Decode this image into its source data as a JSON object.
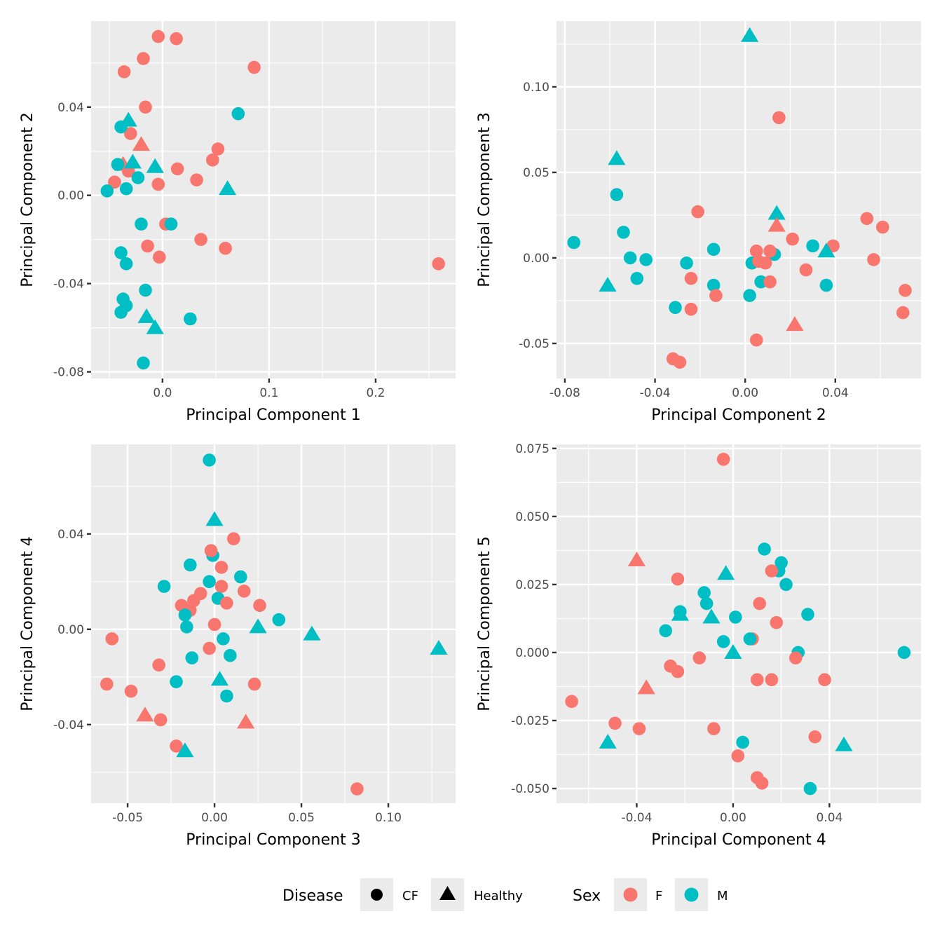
{
  "colors": {
    "panel_background": "#EBEBEB",
    "grid_major": "#FFFFFF",
    "grid_minor": "#F5F5F5",
    "tick": "#333333",
    "F": "#F8766D",
    "M": "#00BFC4"
  },
  "legend": {
    "disease": {
      "title": "Disease",
      "items": [
        {
          "key": "CF",
          "label": "CF",
          "shape": "circle"
        },
        {
          "key": "Healthy",
          "label": "Healthy",
          "shape": "triangle"
        }
      ]
    },
    "sex": {
      "title": "Sex",
      "items": [
        {
          "key": "F",
          "label": "F",
          "color": "#F8766D"
        },
        {
          "key": "M",
          "label": "M",
          "color": "#00BFC4"
        }
      ]
    },
    "placement": "bottom"
  },
  "chart_data": [
    {
      "type": "scatter",
      "title": "",
      "xlabel": "Principal Component 1",
      "ylabel": "Principal Component 2",
      "xlim": [
        -0.067,
        0.275
      ],
      "ylim": [
        -0.083,
        0.079
      ],
      "grid": true,
      "xticks": [
        {
          "v": 0.0,
          "label": "0.0"
        },
        {
          "v": 0.1,
          "label": "0.1"
        },
        {
          "v": 0.2,
          "label": "0.2"
        }
      ],
      "yticks": [
        {
          "v": 0.04,
          "label": "0.04"
        },
        {
          "v": 0.0,
          "label": "0.00"
        },
        {
          "v": -0.04,
          "label": "-0.04"
        },
        {
          "v": -0.08,
          "label": "-0.08"
        }
      ],
      "points": [
        [
          -0.004,
          0.072,
          "F",
          "CF"
        ],
        [
          0.013,
          0.071,
          "F",
          "CF"
        ],
        [
          -0.018,
          0.062,
          "F",
          "CF"
        ],
        [
          -0.036,
          0.056,
          "F",
          "CF"
        ],
        [
          0.086,
          0.058,
          "F",
          "CF"
        ],
        [
          -0.016,
          0.04,
          "F",
          "CF"
        ],
        [
          -0.03,
          0.028,
          "F",
          "CF"
        ],
        [
          0.052,
          0.021,
          "F",
          "CF"
        ],
        [
          0.047,
          0.016,
          "F",
          "CF"
        ],
        [
          0.014,
          0.012,
          "F",
          "CF"
        ],
        [
          0.032,
          0.007,
          "F",
          "CF"
        ],
        [
          -0.004,
          0.005,
          "F",
          "CF"
        ],
        [
          -0.045,
          0.006,
          "F",
          "CF"
        ],
        [
          -0.032,
          0.011,
          "F",
          "CF"
        ],
        [
          0.003,
          -0.013,
          "F",
          "CF"
        ],
        [
          0.036,
          -0.02,
          "F",
          "CF"
        ],
        [
          -0.014,
          -0.023,
          "F",
          "CF"
        ],
        [
          0.059,
          -0.024,
          "F",
          "CF"
        ],
        [
          -0.003,
          -0.028,
          "F",
          "CF"
        ],
        [
          0.259,
          -0.031,
          "F",
          "CF"
        ],
        [
          -0.02,
          0.023,
          "F",
          "Healthy"
        ],
        [
          -0.037,
          0.014,
          "F",
          "Healthy"
        ],
        [
          -0.039,
          0.031,
          "M",
          "CF"
        ],
        [
          0.071,
          0.037,
          "M",
          "CF"
        ],
        [
          -0.042,
          0.014,
          "M",
          "CF"
        ],
        [
          -0.023,
          0.008,
          "M",
          "CF"
        ],
        [
          -0.034,
          0.003,
          "M",
          "CF"
        ],
        [
          -0.052,
          0.002,
          "M",
          "CF"
        ],
        [
          -0.02,
          -0.013,
          "M",
          "CF"
        ],
        [
          0.008,
          -0.013,
          "M",
          "CF"
        ],
        [
          -0.039,
          -0.026,
          "M",
          "CF"
        ],
        [
          -0.034,
          -0.031,
          "M",
          "CF"
        ],
        [
          -0.016,
          -0.043,
          "M",
          "CF"
        ],
        [
          -0.037,
          -0.047,
          "M",
          "CF"
        ],
        [
          -0.034,
          -0.05,
          "M",
          "CF"
        ],
        [
          -0.039,
          -0.053,
          "M",
          "CF"
        ],
        [
          0.026,
          -0.056,
          "M",
          "CF"
        ],
        [
          -0.018,
          -0.076,
          "M",
          "CF"
        ],
        [
          -0.032,
          0.034,
          "M",
          "Healthy"
        ],
        [
          -0.028,
          0.015,
          "M",
          "Healthy"
        ],
        [
          -0.007,
          0.013,
          "M",
          "Healthy"
        ],
        [
          0.061,
          0.003,
          "M",
          "Healthy"
        ],
        [
          -0.015,
          -0.055,
          "M",
          "Healthy"
        ],
        [
          -0.007,
          -0.06,
          "M",
          "Healthy"
        ]
      ]
    },
    {
      "type": "scatter",
      "title": "",
      "xlabel": "Principal Component 2",
      "ylabel": "Principal Component 3",
      "xlim": [
        -0.0837,
        0.078
      ],
      "ylim": [
        -0.0705,
        0.1385
      ],
      "grid": true,
      "xticks": [
        {
          "v": -0.08,
          "label": "-0.08"
        },
        {
          "v": -0.04,
          "label": "-0.04"
        },
        {
          "v": 0.0,
          "label": "0.00"
        },
        {
          "v": 0.04,
          "label": "0.04"
        }
      ],
      "yticks": [
        {
          "v": 0.1,
          "label": "0.10"
        },
        {
          "v": 0.05,
          "label": "0.05"
        },
        {
          "v": 0.0,
          "label": "0.00"
        },
        {
          "v": -0.05,
          "label": "-0.05"
        }
      ],
      "points": [
        [
          0.002,
          0.13,
          "M",
          "Healthy"
        ],
        [
          0.015,
          0.082,
          "F",
          "CF"
        ],
        [
          -0.057,
          0.058,
          "M",
          "Healthy"
        ],
        [
          -0.057,
          0.037,
          "M",
          "CF"
        ],
        [
          -0.021,
          0.027,
          "F",
          "CF"
        ],
        [
          0.014,
          0.026,
          "M",
          "Healthy"
        ],
        [
          0.014,
          0.019,
          "F",
          "Healthy"
        ],
        [
          -0.054,
          0.015,
          "M",
          "CF"
        ],
        [
          0.054,
          0.023,
          "F",
          "CF"
        ],
        [
          0.061,
          0.018,
          "F",
          "CF"
        ],
        [
          0.021,
          0.011,
          "F",
          "CF"
        ],
        [
          -0.076,
          0.009,
          "M",
          "CF"
        ],
        [
          -0.014,
          0.005,
          "M",
          "CF"
        ],
        [
          0.03,
          0.007,
          "M",
          "CF"
        ],
        [
          0.039,
          0.007,
          "F",
          "CF"
        ],
        [
          0.013,
          0.002,
          "M",
          "CF"
        ],
        [
          0.005,
          0.004,
          "F",
          "CF"
        ],
        [
          0.011,
          0.004,
          "F",
          "CF"
        ],
        [
          0.036,
          0.004,
          "M",
          "Healthy"
        ],
        [
          -0.051,
          0.0,
          "M",
          "CF"
        ],
        [
          -0.044,
          -0.001,
          "M",
          "CF"
        ],
        [
          0.057,
          -0.001,
          "F",
          "CF"
        ],
        [
          0.003,
          -0.003,
          "M",
          "CF"
        ],
        [
          0.006,
          -0.002,
          "F",
          "CF"
        ],
        [
          0.009,
          -0.003,
          "F",
          "CF"
        ],
        [
          -0.026,
          -0.003,
          "M",
          "CF"
        ],
        [
          0.027,
          -0.007,
          "F",
          "CF"
        ],
        [
          -0.048,
          -0.012,
          "M",
          "CF"
        ],
        [
          -0.024,
          -0.012,
          "F",
          "CF"
        ],
        [
          0.007,
          -0.014,
          "M",
          "CF"
        ],
        [
          0.011,
          -0.014,
          "F",
          "CF"
        ],
        [
          -0.014,
          -0.016,
          "M",
          "CF"
        ],
        [
          0.036,
          -0.016,
          "M",
          "CF"
        ],
        [
          0.071,
          -0.019,
          "F",
          "CF"
        ],
        [
          -0.061,
          -0.016,
          "M",
          "Healthy"
        ],
        [
          -0.013,
          -0.022,
          "F",
          "CF"
        ],
        [
          0.002,
          -0.022,
          "M",
          "CF"
        ],
        [
          -0.031,
          -0.029,
          "M",
          "CF"
        ],
        [
          -0.024,
          -0.03,
          "F",
          "CF"
        ],
        [
          0.07,
          -0.032,
          "F",
          "CF"
        ],
        [
          0.022,
          -0.039,
          "F",
          "Healthy"
        ],
        [
          0.005,
          -0.048,
          "F",
          "CF"
        ],
        [
          -0.032,
          -0.059,
          "F",
          "CF"
        ],
        [
          -0.029,
          -0.061,
          "F",
          "CF"
        ]
      ]
    },
    {
      "type": "scatter",
      "title": "",
      "xlabel": "Principal Component 3",
      "ylabel": "Principal Component 4",
      "xlim": [
        -0.071,
        0.1387
      ],
      "ylim": [
        -0.073,
        0.0776
      ],
      "grid": true,
      "xticks": [
        {
          "v": -0.05,
          "label": "-0.05"
        },
        {
          "v": 0.0,
          "label": "0.00"
        },
        {
          "v": 0.05,
          "label": "0.05"
        },
        {
          "v": 0.1,
          "label": "0.10"
        }
      ],
      "yticks": [
        {
          "v": 0.04,
          "label": "0.04"
        },
        {
          "v": 0.0,
          "label": "0.00"
        },
        {
          "v": -0.04,
          "label": "-0.04"
        }
      ],
      "points": [
        [
          -0.003,
          0.071,
          "M",
          "CF"
        ],
        [
          0.0,
          0.046,
          "M",
          "Healthy"
        ],
        [
          0.011,
          0.038,
          "F",
          "CF"
        ],
        [
          -0.001,
          0.031,
          "M",
          "CF"
        ],
        [
          -0.002,
          0.033,
          "F",
          "CF"
        ],
        [
          -0.014,
          0.027,
          "M",
          "CF"
        ],
        [
          0.004,
          0.026,
          "F",
          "CF"
        ],
        [
          -0.029,
          0.018,
          "M",
          "CF"
        ],
        [
          -0.003,
          0.02,
          "M",
          "CF"
        ],
        [
          0.004,
          0.018,
          "F",
          "CF"
        ],
        [
          0.015,
          0.022,
          "M",
          "CF"
        ],
        [
          0.017,
          0.016,
          "F",
          "CF"
        ],
        [
          -0.008,
          0.015,
          "F",
          "CF"
        ],
        [
          -0.012,
          0.012,
          "F",
          "CF"
        ],
        [
          -0.019,
          0.01,
          "F",
          "CF"
        ],
        [
          0.002,
          0.013,
          "M",
          "CF"
        ],
        [
          0.007,
          0.011,
          "F",
          "CF"
        ],
        [
          0.026,
          0.01,
          "F",
          "CF"
        ],
        [
          -0.014,
          0.008,
          "F",
          "CF"
        ],
        [
          -0.017,
          0.006,
          "M",
          "CF"
        ],
        [
          0.037,
          0.004,
          "M",
          "CF"
        ],
        [
          -0.016,
          0.001,
          "M",
          "CF"
        ],
        [
          0.0,
          0.002,
          "F",
          "CF"
        ],
        [
          0.025,
          0.001,
          "M",
          "Healthy"
        ],
        [
          0.056,
          -0.002,
          "M",
          "Healthy"
        ],
        [
          -0.059,
          -0.004,
          "F",
          "CF"
        ],
        [
          0.005,
          -0.004,
          "M",
          "CF"
        ],
        [
          -0.003,
          -0.008,
          "F",
          "CF"
        ],
        [
          0.009,
          -0.011,
          "M",
          "CF"
        ],
        [
          -0.013,
          -0.012,
          "M",
          "CF"
        ],
        [
          -0.032,
          -0.015,
          "F",
          "CF"
        ],
        [
          0.129,
          -0.008,
          "M",
          "Healthy"
        ],
        [
          -0.022,
          -0.022,
          "M",
          "CF"
        ],
        [
          -0.062,
          -0.023,
          "F",
          "CF"
        ],
        [
          0.003,
          -0.021,
          "M",
          "Healthy"
        ],
        [
          0.023,
          -0.023,
          "F",
          "CF"
        ],
        [
          -0.048,
          -0.026,
          "F",
          "CF"
        ],
        [
          0.007,
          -0.028,
          "M",
          "CF"
        ],
        [
          -0.04,
          -0.036,
          "F",
          "Healthy"
        ],
        [
          -0.031,
          -0.038,
          "F",
          "CF"
        ],
        [
          0.018,
          -0.039,
          "F",
          "Healthy"
        ],
        [
          -0.022,
          -0.049,
          "F",
          "CF"
        ],
        [
          -0.017,
          -0.051,
          "M",
          "Healthy"
        ],
        [
          0.082,
          -0.067,
          "F",
          "CF"
        ]
      ]
    },
    {
      "type": "scatter",
      "title": "",
      "xlabel": "Principal Component 4",
      "ylabel": "Principal Component 5",
      "xlim": [
        -0.0733,
        0.078
      ],
      "ylim": [
        -0.0554,
        0.0765
      ],
      "grid": true,
      "xticks": [
        {
          "v": -0.04,
          "label": "-0.04"
        },
        {
          "v": 0.0,
          "label": "0.00"
        },
        {
          "v": 0.04,
          "label": "0.04"
        }
      ],
      "yticks": [
        {
          "v": 0.075,
          "label": "0.075"
        },
        {
          "v": 0.05,
          "label": "0.050"
        },
        {
          "v": 0.025,
          "label": "0.025"
        },
        {
          "v": 0.0,
          "label": "0.000"
        },
        {
          "v": -0.025,
          "label": "-0.025"
        },
        {
          "v": -0.05,
          "label": "-0.050"
        }
      ],
      "points": [
        [
          -0.004,
          0.071,
          "F",
          "CF"
        ],
        [
          0.013,
          0.038,
          "M",
          "CF"
        ],
        [
          0.02,
          0.033,
          "M",
          "CF"
        ],
        [
          0.019,
          0.03,
          "M",
          "CF"
        ],
        [
          0.016,
          0.03,
          "F",
          "CF"
        ],
        [
          -0.04,
          0.034,
          "F",
          "Healthy"
        ],
        [
          -0.003,
          0.029,
          "M",
          "Healthy"
        ],
        [
          -0.023,
          0.027,
          "F",
          "CF"
        ],
        [
          0.022,
          0.025,
          "M",
          "CF"
        ],
        [
          -0.012,
          0.022,
          "M",
          "CF"
        ],
        [
          -0.011,
          0.018,
          "M",
          "CF"
        ],
        [
          0.011,
          0.018,
          "F",
          "CF"
        ],
        [
          -0.022,
          0.015,
          "M",
          "CF"
        ],
        [
          -0.022,
          0.014,
          "M",
          "Healthy"
        ],
        [
          -0.009,
          0.013,
          "M",
          "Healthy"
        ],
        [
          0.001,
          0.013,
          "M",
          "CF"
        ],
        [
          0.031,
          0.014,
          "M",
          "CF"
        ],
        [
          0.018,
          0.011,
          "F",
          "CF"
        ],
        [
          -0.028,
          0.008,
          "M",
          "CF"
        ],
        [
          -0.004,
          0.004,
          "M",
          "CF"
        ],
        [
          0.008,
          0.005,
          "F",
          "CF"
        ],
        [
          0.007,
          0.005,
          "M",
          "CF"
        ],
        [
          0.027,
          0.0,
          "M",
          "CF"
        ],
        [
          0.026,
          -0.002,
          "F",
          "CF"
        ],
        [
          0.0,
          0.0,
          "M",
          "Healthy"
        ],
        [
          0.071,
          0.0,
          "M",
          "CF"
        ],
        [
          -0.014,
          -0.002,
          "F",
          "CF"
        ],
        [
          -0.026,
          -0.005,
          "F",
          "CF"
        ],
        [
          -0.023,
          -0.007,
          "F",
          "CF"
        ],
        [
          0.01,
          -0.01,
          "F",
          "CF"
        ],
        [
          0.016,
          -0.01,
          "F",
          "CF"
        ],
        [
          0.038,
          -0.01,
          "F",
          "CF"
        ],
        [
          -0.036,
          -0.013,
          "F",
          "Healthy"
        ],
        [
          -0.067,
          -0.018,
          "F",
          "CF"
        ],
        [
          -0.049,
          -0.026,
          "F",
          "CF"
        ],
        [
          -0.039,
          -0.028,
          "F",
          "CF"
        ],
        [
          -0.008,
          -0.028,
          "F",
          "CF"
        ],
        [
          0.004,
          -0.033,
          "M",
          "CF"
        ],
        [
          -0.052,
          -0.033,
          "M",
          "Healthy"
        ],
        [
          0.046,
          -0.034,
          "M",
          "Healthy"
        ],
        [
          0.034,
          -0.031,
          "F",
          "CF"
        ],
        [
          0.002,
          -0.038,
          "F",
          "CF"
        ],
        [
          0.01,
          -0.046,
          "F",
          "CF"
        ],
        [
          0.012,
          -0.048,
          "F",
          "CF"
        ],
        [
          0.032,
          -0.05,
          "M",
          "CF"
        ]
      ]
    }
  ]
}
